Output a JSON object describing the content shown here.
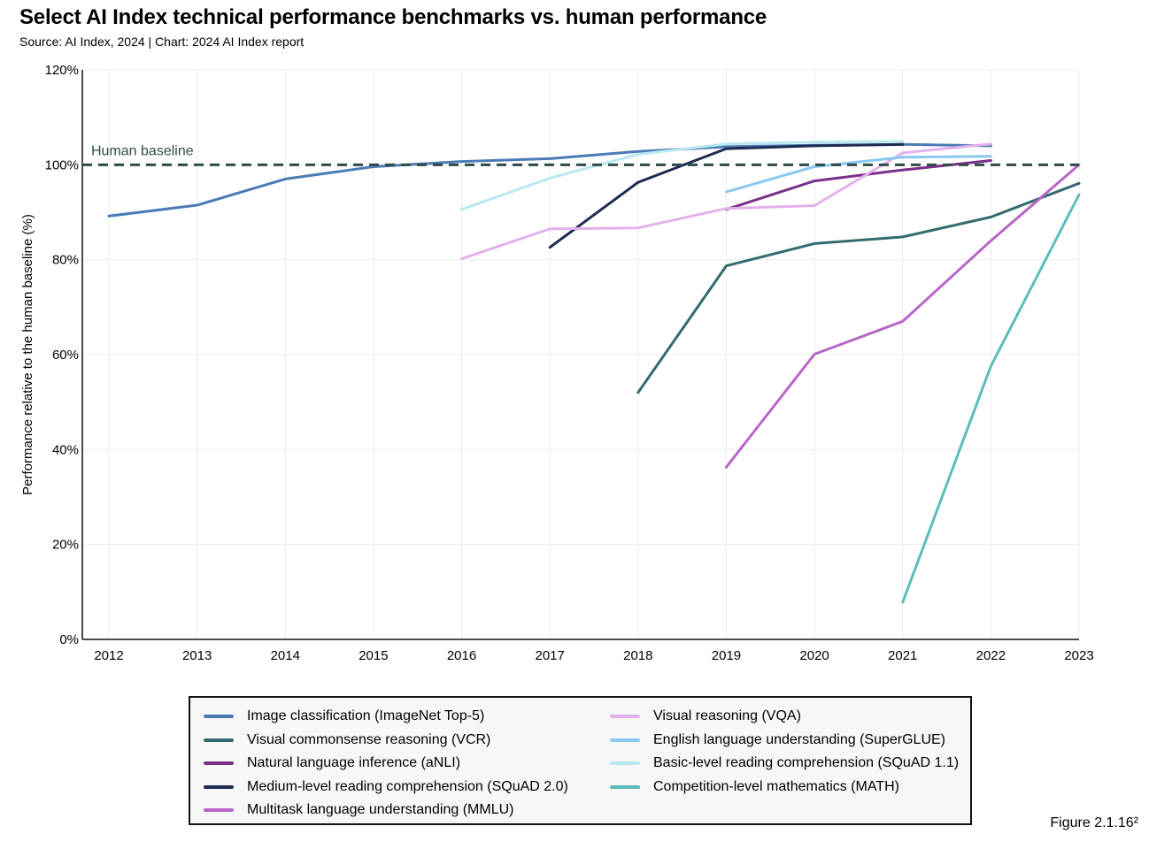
{
  "header": {
    "title": "Select AI Index technical performance benchmarks vs. human performance",
    "subtitle": "Source: AI Index, 2024 | Chart: 2024 AI Index report"
  },
  "figure_label": "Figure 2.1.16²",
  "chart_data": {
    "type": "line",
    "title": "Select AI Index technical performance benchmarks vs. human performance",
    "subtitle": "Source: AI Index, 2024 | Chart: 2024 AI Index report",
    "xlabel": "",
    "ylabel": "Performance relative to the human baseline (%)",
    "x_ticks": [
      "2012",
      "2013",
      "2014",
      "2015",
      "2016",
      "2017",
      "2018",
      "2019",
      "2020",
      "2021",
      "2022",
      "2023"
    ],
    "xlim": [
      2012,
      2023
    ],
    "ylim": [
      0,
      120
    ],
    "y_ticks": [
      "0%",
      "20%",
      "40%",
      "60%",
      "80%",
      "100%",
      "120%"
    ],
    "y_tick_values": [
      0,
      20,
      40,
      60,
      80,
      100,
      120
    ],
    "grid": true,
    "legend_position": "bottom",
    "baseline": {
      "label": "Human baseline",
      "value": 100,
      "color": "#2f4a4a"
    },
    "series": [
      {
        "name": "Image classification (ImageNet Top-5)",
        "color": "#4a7bb5",
        "x": [
          2012,
          2013,
          2014,
          2015,
          2016,
          2017,
          2018,
          2019,
          2020,
          2021,
          2022
        ],
        "y": [
          89.2,
          91.5,
          97.0,
          99.6,
          100.7,
          101.3,
          102.8,
          103.8,
          104.1,
          104.3,
          104.0
        ]
      },
      {
        "name": "Visual commonsense reasoning (VCR)",
        "color": "#336b6e",
        "x": [
          2018,
          2019,
          2020,
          2021,
          2022,
          2023
        ],
        "y": [
          52.0,
          78.7,
          83.4,
          84.8,
          89.0,
          96.1
        ]
      },
      {
        "name": "Natural language inference (aNLI)",
        "color": "#7a2f88",
        "x": [
          2019,
          2020,
          2021,
          2022
        ],
        "y": [
          90.6,
          96.6,
          98.9,
          100.9
        ]
      },
      {
        "name": "Medium-level reading comprehension (SQuAD 2.0)",
        "color": "#1e2a52",
        "x": [
          2017,
          2018,
          2019,
          2020,
          2021
        ],
        "y": [
          82.6,
          96.3,
          103.4,
          104.0,
          104.3
        ]
      },
      {
        "name": "Multitask language understanding (MMLU)",
        "color": "#b865c8",
        "x": [
          2019,
          2020,
          2021,
          2022,
          2023
        ],
        "y": [
          36.3,
          60.1,
          67.0,
          84.0,
          100.0
        ]
      },
      {
        "name": "Visual reasoning (VQA)",
        "color": "#e2b1ec",
        "x": [
          2016,
          2017,
          2018,
          2019,
          2020,
          2021,
          2022
        ],
        "y": [
          80.2,
          86.5,
          86.7,
          90.8,
          91.4,
          102.5,
          104.4
        ]
      },
      {
        "name": "English language understanding (SuperGLUE)",
        "color": "#8ac8f0",
        "x": [
          2019,
          2020,
          2021,
          2022
        ],
        "y": [
          94.3,
          99.6,
          101.6,
          101.8
        ]
      },
      {
        "name": "Basic-level reading comprehension (SQuAD 1.1)",
        "color": "#b9e8f0",
        "x": [
          2016,
          2017,
          2018,
          2019,
          2020,
          2021
        ],
        "y": [
          90.6,
          97.2,
          102.2,
          104.4,
          104.8,
          104.9
        ]
      },
      {
        "name": "Competition-level mathematics (MATH)",
        "color": "#5bbdbb",
        "x": [
          2021,
          2022,
          2023
        ],
        "y": [
          7.8,
          57.6,
          93.7
        ]
      }
    ],
    "legend_order": [
      0,
      5,
      1,
      6,
      2,
      7,
      3,
      8,
      4
    ]
  }
}
